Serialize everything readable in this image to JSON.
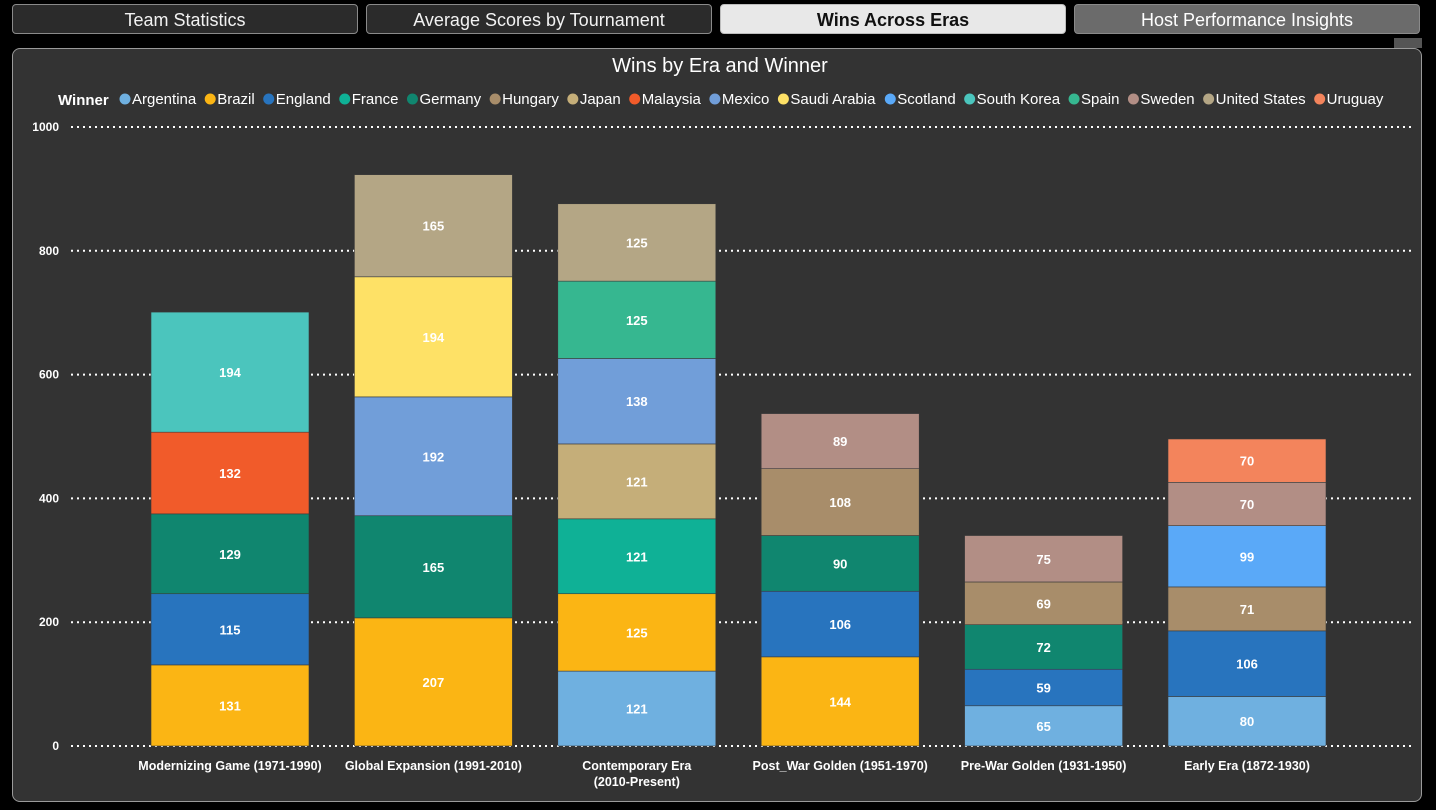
{
  "tabs": [
    {
      "label": "Team Statistics",
      "state": "normal"
    },
    {
      "label": "Average Scores by Tournament",
      "state": "normal"
    },
    {
      "label": "Wins Across Eras",
      "state": "active"
    },
    {
      "label": "Host Performance Insights",
      "state": "hover"
    }
  ],
  "colors": {
    "Argentina": "#6fb0e0",
    "Brazil": "#fbb514",
    "England": "#2874be",
    "France": "#0fb196",
    "Germany": "#10866f",
    "Hungary": "#a88d6a",
    "Japan": "#c5ae79",
    "Malaysia": "#f15b2a",
    "Mexico": "#719ed9",
    "Saudi Arabia": "#fee166",
    "Scotland": "#5aa9f8",
    "South Korea": "#4bc5bd",
    "Spain": "#36b790",
    "Sweden": "#b28e85",
    "United States": "#b4a685",
    "Uruguay": "#f3845c"
  },
  "chart_data": {
    "type": "bar",
    "stacked": true,
    "title": "Wins by Era and Winner",
    "legend_title": "Winner",
    "legend_position": "top",
    "xlabel": "",
    "ylabel": "",
    "ylim": [
      0,
      1000
    ],
    "yticks": [
      0,
      200,
      400,
      600,
      800,
      1000
    ],
    "grid": "horizontal dotted",
    "legend": [
      "Argentina",
      "Brazil",
      "England",
      "France",
      "Germany",
      "Hungary",
      "Japan",
      "Malaysia",
      "Mexico",
      "Saudi Arabia",
      "Scotland",
      "South Korea",
      "Spain",
      "Sweden",
      "United States",
      "Uruguay"
    ],
    "categories": [
      "Modernizing Game (1971-1990)",
      "Global Expansion (1991-2010)",
      "Contemporary Era (2010-Present)",
      "Post_War Golden (1951-1970)",
      "Pre-War Golden (1931-1950)",
      "Early Era (1872-1930)"
    ],
    "category_lines": [
      [
        "Modernizing Game (1971-1990)"
      ],
      [
        "Global Expansion (1991-2010)"
      ],
      [
        "Contemporary Era",
        "(2010-Present)"
      ],
      [
        "Post_War Golden (1951-1970)"
      ],
      [
        "Pre-War Golden (1931-1950)"
      ],
      [
        "Early Era (1872-1930)"
      ]
    ],
    "stacks": [
      [
        {
          "winner": "Brazil",
          "value": 131
        },
        {
          "winner": "England",
          "value": 115
        },
        {
          "winner": "Germany",
          "value": 129
        },
        {
          "winner": "Malaysia",
          "value": 132
        },
        {
          "winner": "South Korea",
          "value": 194
        }
      ],
      [
        {
          "winner": "Brazil",
          "value": 207
        },
        {
          "winner": "Germany",
          "value": 165
        },
        {
          "winner": "Mexico",
          "value": 192
        },
        {
          "winner": "Saudi Arabia",
          "value": 194
        },
        {
          "winner": "United States",
          "value": 165
        }
      ],
      [
        {
          "winner": "Argentina",
          "value": 121
        },
        {
          "winner": "Brazil",
          "value": 125
        },
        {
          "winner": "France",
          "value": 121
        },
        {
          "winner": "Japan",
          "value": 121
        },
        {
          "winner": "Mexico",
          "value": 138
        },
        {
          "winner": "Spain",
          "value": 125
        },
        {
          "winner": "United States",
          "value": 125
        }
      ],
      [
        {
          "winner": "Brazil",
          "value": 144
        },
        {
          "winner": "England",
          "value": 106
        },
        {
          "winner": "Germany",
          "value": 90
        },
        {
          "winner": "Hungary",
          "value": 108
        },
        {
          "winner": "Sweden",
          "value": 89
        }
      ],
      [
        {
          "winner": "Argentina",
          "value": 65
        },
        {
          "winner": "England",
          "value": 59
        },
        {
          "winner": "Germany",
          "value": 72
        },
        {
          "winner": "Hungary",
          "value": 69
        },
        {
          "winner": "Sweden",
          "value": 75
        }
      ],
      [
        {
          "winner": "Argentina",
          "value": 80
        },
        {
          "winner": "England",
          "value": 106
        },
        {
          "winner": "Hungary",
          "value": 71
        },
        {
          "winner": "Scotland",
          "value": 99
        },
        {
          "winner": "Sweden",
          "value": 70
        },
        {
          "winner": "Uruguay",
          "value": 70
        }
      ]
    ]
  }
}
